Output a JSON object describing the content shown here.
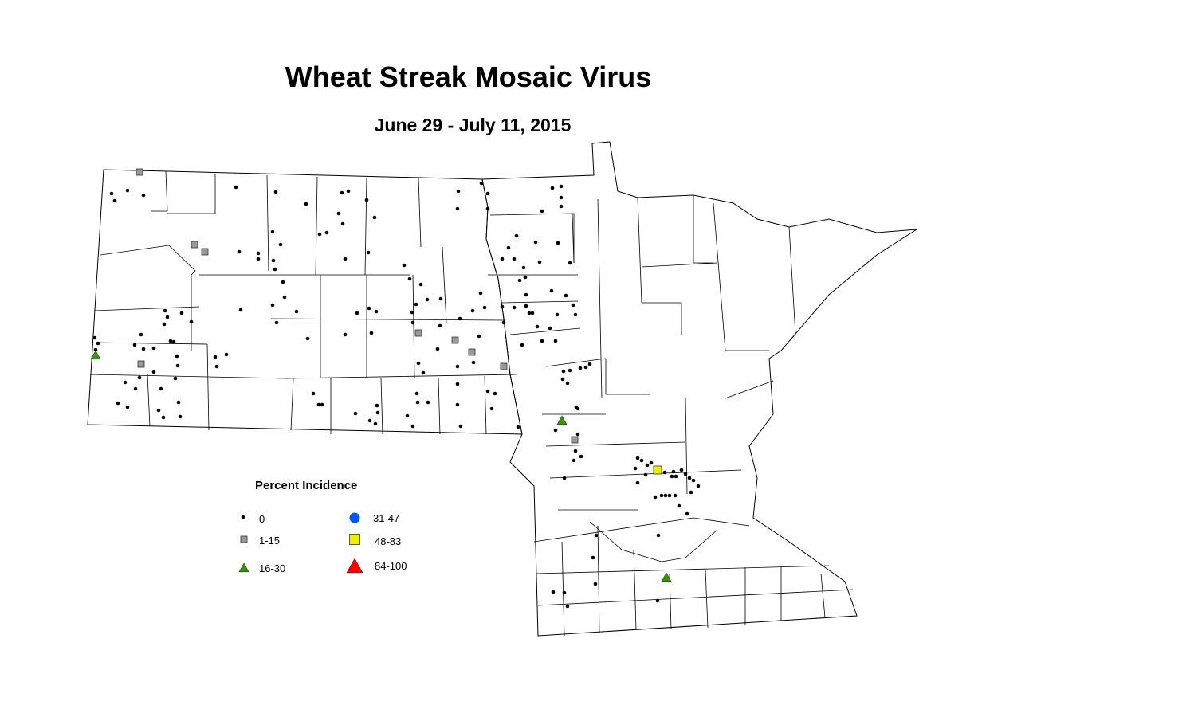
{
  "title": "Wheat Streak Mosaic Virus",
  "subtitle": "June 29 - July 11, 2015",
  "legend": {
    "title": "Percent Incidence",
    "items": [
      {
        "label": "0",
        "symbol": "dot",
        "color": "#000000"
      },
      {
        "label": "1-15",
        "symbol": "square",
        "color": "#999999"
      },
      {
        "label": "16-30",
        "symbol": "triangle",
        "color": "#339900"
      },
      {
        "label": "31-47",
        "symbol": "circle",
        "color": "#0055EE"
      },
      {
        "label": "48-83",
        "symbol": "square",
        "color": "#EEEE00"
      },
      {
        "label": "84-100",
        "symbol": "triangle",
        "color": "#FF0000"
      }
    ]
  }
}
